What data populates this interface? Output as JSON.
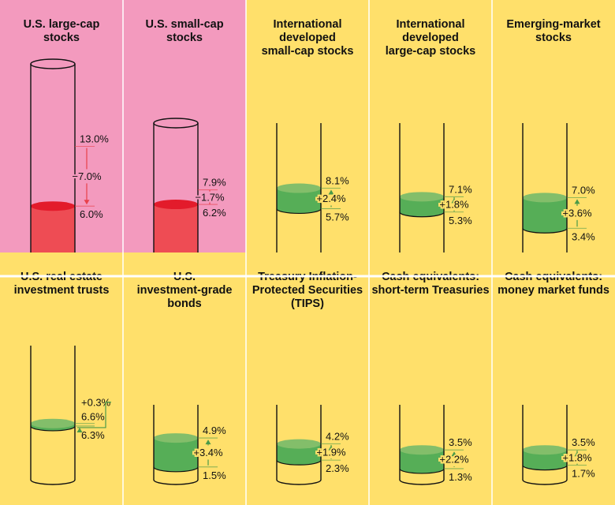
{
  "chart_data": {
    "type": "cylinder-comparison",
    "description_units": "percent",
    "colors": {
      "bg_decrease": "#F39ABE",
      "bg_increase": "#FFE06B",
      "fill_decrease": "#EE4C54",
      "top_decrease": "#E31B2B",
      "fill_increase": "#56AE57",
      "top_increase": "#83BE6A",
      "arrow_decrease": "#E8414B",
      "arrow_increase": "#4A9A48",
      "outline": "#111111",
      "divider": "#ffffff"
    },
    "panels": [
      {
        "title": [
          "U.S. large-cap",
          "stocks"
        ],
        "top_value": 13.0,
        "top_label": "13.0%",
        "bottom_value": 6.0,
        "bottom_label": "6.0%",
        "change_label": "−7.0%",
        "direction": "down",
        "cyl_size": "xl"
      },
      {
        "title": [
          "U.S. small-cap",
          "stocks"
        ],
        "top_value": 7.9,
        "top_label": "7.9%",
        "bottom_value": 6.2,
        "bottom_label": "6.2%",
        "change_label": "−1.7%",
        "direction": "down",
        "cyl_size": "lg"
      },
      {
        "title": [
          "International",
          "developed",
          "small-cap stocks"
        ],
        "top_value": 8.1,
        "top_label": "8.1%",
        "bottom_value": 5.7,
        "bottom_label": "5.7%",
        "change_label": "+2.4%",
        "direction": "up",
        "cyl_size": "lg"
      },
      {
        "title": [
          "International",
          "developed",
          "large-cap stocks"
        ],
        "top_value": 7.1,
        "top_label": "7.1%",
        "bottom_value": 5.3,
        "bottom_label": "5.3%",
        "change_label": "+1.8%",
        "direction": "up",
        "cyl_size": "lg"
      },
      {
        "title": [
          "Emerging-market",
          "stocks"
        ],
        "top_value": 7.0,
        "top_label": "7.0%",
        "bottom_value": 3.4,
        "bottom_label": "3.4%",
        "change_label": "+3.6%",
        "direction": "up",
        "cyl_size": "lg"
      },
      {
        "title": [
          "U.S. real estate",
          "investment trusts"
        ],
        "top_value": 6.6,
        "top_label": "6.6%",
        "bottom_value": 6.3,
        "bottom_label": "6.3%",
        "change_label": "+0.3%",
        "direction": "up",
        "cyl_size": "lg"
      },
      {
        "title": [
          "U.S.",
          "investment-grade",
          "bonds"
        ],
        "top_value": 4.9,
        "top_label": "4.9%",
        "bottom_value": 1.5,
        "bottom_label": "1.5%",
        "change_label": "+3.4%",
        "direction": "up",
        "cyl_size": "sm"
      },
      {
        "title": [
          "Treasury Inflation-",
          "Protected Securities",
          "(TIPS)"
        ],
        "top_value": 4.2,
        "top_label": "4.2%",
        "bottom_value": 2.3,
        "bottom_label": "2.3%",
        "change_label": "+1.9%",
        "direction": "up",
        "cyl_size": "sm"
      },
      {
        "title": [
          "Cash equivalents:",
          "short-term Treasuries"
        ],
        "top_value": 3.5,
        "top_label": "3.5%",
        "bottom_value": 1.3,
        "bottom_label": "1.3%",
        "change_label": "+2.2%",
        "direction": "up",
        "cyl_size": "sm"
      },
      {
        "title": [
          "Cash equivalents:",
          "money market funds"
        ],
        "top_value": 3.5,
        "top_label": "3.5%",
        "bottom_value": 1.7,
        "bottom_label": "1.7%",
        "change_label": "+1.8%",
        "direction": "up",
        "cyl_size": "sm"
      }
    ]
  }
}
